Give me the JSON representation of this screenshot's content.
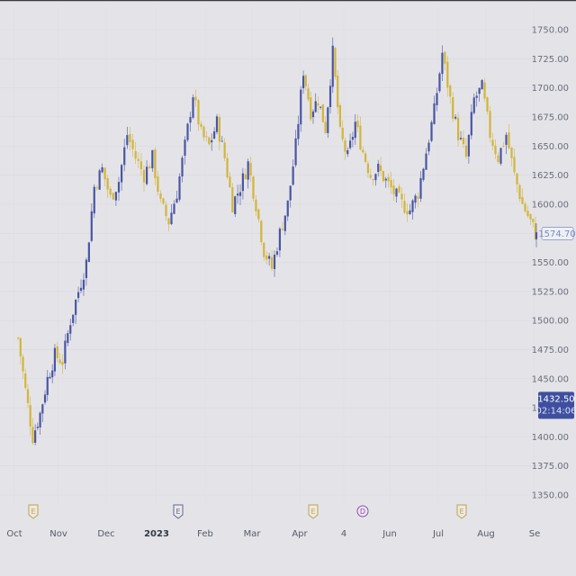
{
  "chart_data": {
    "type": "candlestick",
    "title": "",
    "xlabel": "",
    "ylabel": "",
    "ylim": [
      1340,
      1765
    ],
    "y_ticks": [
      1350,
      1375,
      1400,
      1425,
      1450,
      1475,
      1500,
      1525,
      1550,
      1575,
      1600,
      1625,
      1650,
      1675,
      1700,
      1725,
      1750
    ],
    "y_tick_labels": [
      "1350.00",
      "1375.00",
      "1400.00",
      "1425.00",
      "1450.00",
      "1475.00",
      "1500.00",
      "1525.00",
      "1550.00",
      "",
      "1600.00",
      "1625.00",
      "1650.00",
      "1675.00",
      "1700.00",
      "1725.00",
      "1750.00"
    ],
    "x_axis_labels": [
      {
        "label": "Oct",
        "bold": false
      },
      {
        "label": "Nov",
        "bold": false
      },
      {
        "label": "Dec",
        "bold": false
      },
      {
        "label": "2023",
        "bold": true
      },
      {
        "label": "Feb",
        "bold": false
      },
      {
        "label": "Mar",
        "bold": false
      },
      {
        "label": "Apr",
        "bold": false
      },
      {
        "label": "4",
        "bold": false
      },
      {
        "label": "Jun",
        "bold": false
      },
      {
        "label": "Jul",
        "bold": false
      },
      {
        "label": "Aug",
        "bold": false
      },
      {
        "label": "Se",
        "bold": false
      }
    ],
    "up_color": "#4a55a2",
    "down_color": "#d2b53a",
    "grid": true,
    "close_path": [
      [
        "Oct",
        1485
      ],
      [
        "Oct",
        1440
      ],
      [
        "Oct",
        1400
      ],
      [
        "Oct",
        1420
      ],
      [
        "Oct",
        1450
      ],
      [
        "Oct",
        1470
      ],
      [
        "Nov",
        1465
      ],
      [
        "Nov",
        1500
      ],
      [
        "Nov",
        1525
      ],
      [
        "Nov",
        1550
      ],
      [
        "Nov",
        1615
      ],
      [
        "Nov",
        1630
      ],
      [
        "Dec",
        1605
      ],
      [
        "Dec",
        1620
      ],
      [
        "Dec",
        1660
      ],
      [
        "Dec",
        1640
      ],
      [
        "Dec",
        1625
      ],
      [
        "Dec",
        1640
      ],
      [
        "2023",
        1600
      ],
      [
        "2023",
        1585
      ],
      [
        "2023",
        1610
      ],
      [
        "2023",
        1650
      ],
      [
        "2023",
        1695
      ],
      [
        "2023",
        1660
      ],
      [
        "Feb",
        1650
      ],
      [
        "Feb",
        1670
      ],
      [
        "Feb",
        1640
      ],
      [
        "Feb",
        1600
      ],
      [
        "Feb",
        1615
      ],
      [
        "Feb",
        1635
      ],
      [
        "Mar",
        1600
      ],
      [
        "Mar",
        1560
      ],
      [
        "Mar",
        1545
      ],
      [
        "Mar",
        1575
      ],
      [
        "Mar",
        1600
      ],
      [
        "Mar",
        1650
      ],
      [
        "Apr",
        1715
      ],
      [
        "Apr",
        1680
      ],
      [
        "Apr",
        1690
      ],
      [
        "Apr",
        1665
      ],
      [
        "Apr",
        1730
      ],
      [
        "Apr",
        1660
      ],
      [
        "4",
        1640
      ],
      [
        "4",
        1670
      ],
      [
        "4",
        1645
      ],
      [
        "4",
        1625
      ],
      [
        "4",
        1630
      ],
      [
        "4",
        1620
      ],
      [
        "Jun",
        1610
      ],
      [
        "Jun",
        1600
      ],
      [
        "Jun",
        1595
      ],
      [
        "Jun",
        1610
      ],
      [
        "Jun",
        1645
      ],
      [
        "Jun",
        1680
      ],
      [
        "Jul",
        1730
      ],
      [
        "Jul",
        1690
      ],
      [
        "Jul",
        1660
      ],
      [
        "Jul",
        1640
      ],
      [
        "Jul",
        1690
      ],
      [
        "Jul",
        1700
      ],
      [
        "Aug",
        1660
      ],
      [
        "Aug",
        1640
      ],
      [
        "Aug",
        1660
      ],
      [
        "Aug",
        1625
      ],
      [
        "Aug",
        1600
      ],
      [
        "Aug",
        1585
      ],
      [
        "Se",
        1575
      ],
      [
        "Se",
        1570
      ]
    ],
    "price_tags": [
      {
        "label": "1574.70",
        "value": 1574.7,
        "style": "outline"
      },
      {
        "label": "1432.50",
        "sublabel": "02:14:06",
        "value": 1432.5,
        "style": "filled"
      }
    ],
    "event_badges": [
      {
        "label": "E",
        "near": "Oct",
        "color": "#b9a35a"
      },
      {
        "label": "E",
        "near": "2023",
        "color": "#5a66a8"
      },
      {
        "label": "E",
        "near": "Apr",
        "color": "#b9a35a"
      },
      {
        "label": "D",
        "near": "4",
        "color": "#8a4fb0"
      },
      {
        "label": "E",
        "near": "Jul",
        "color": "#b9a35a"
      }
    ]
  }
}
